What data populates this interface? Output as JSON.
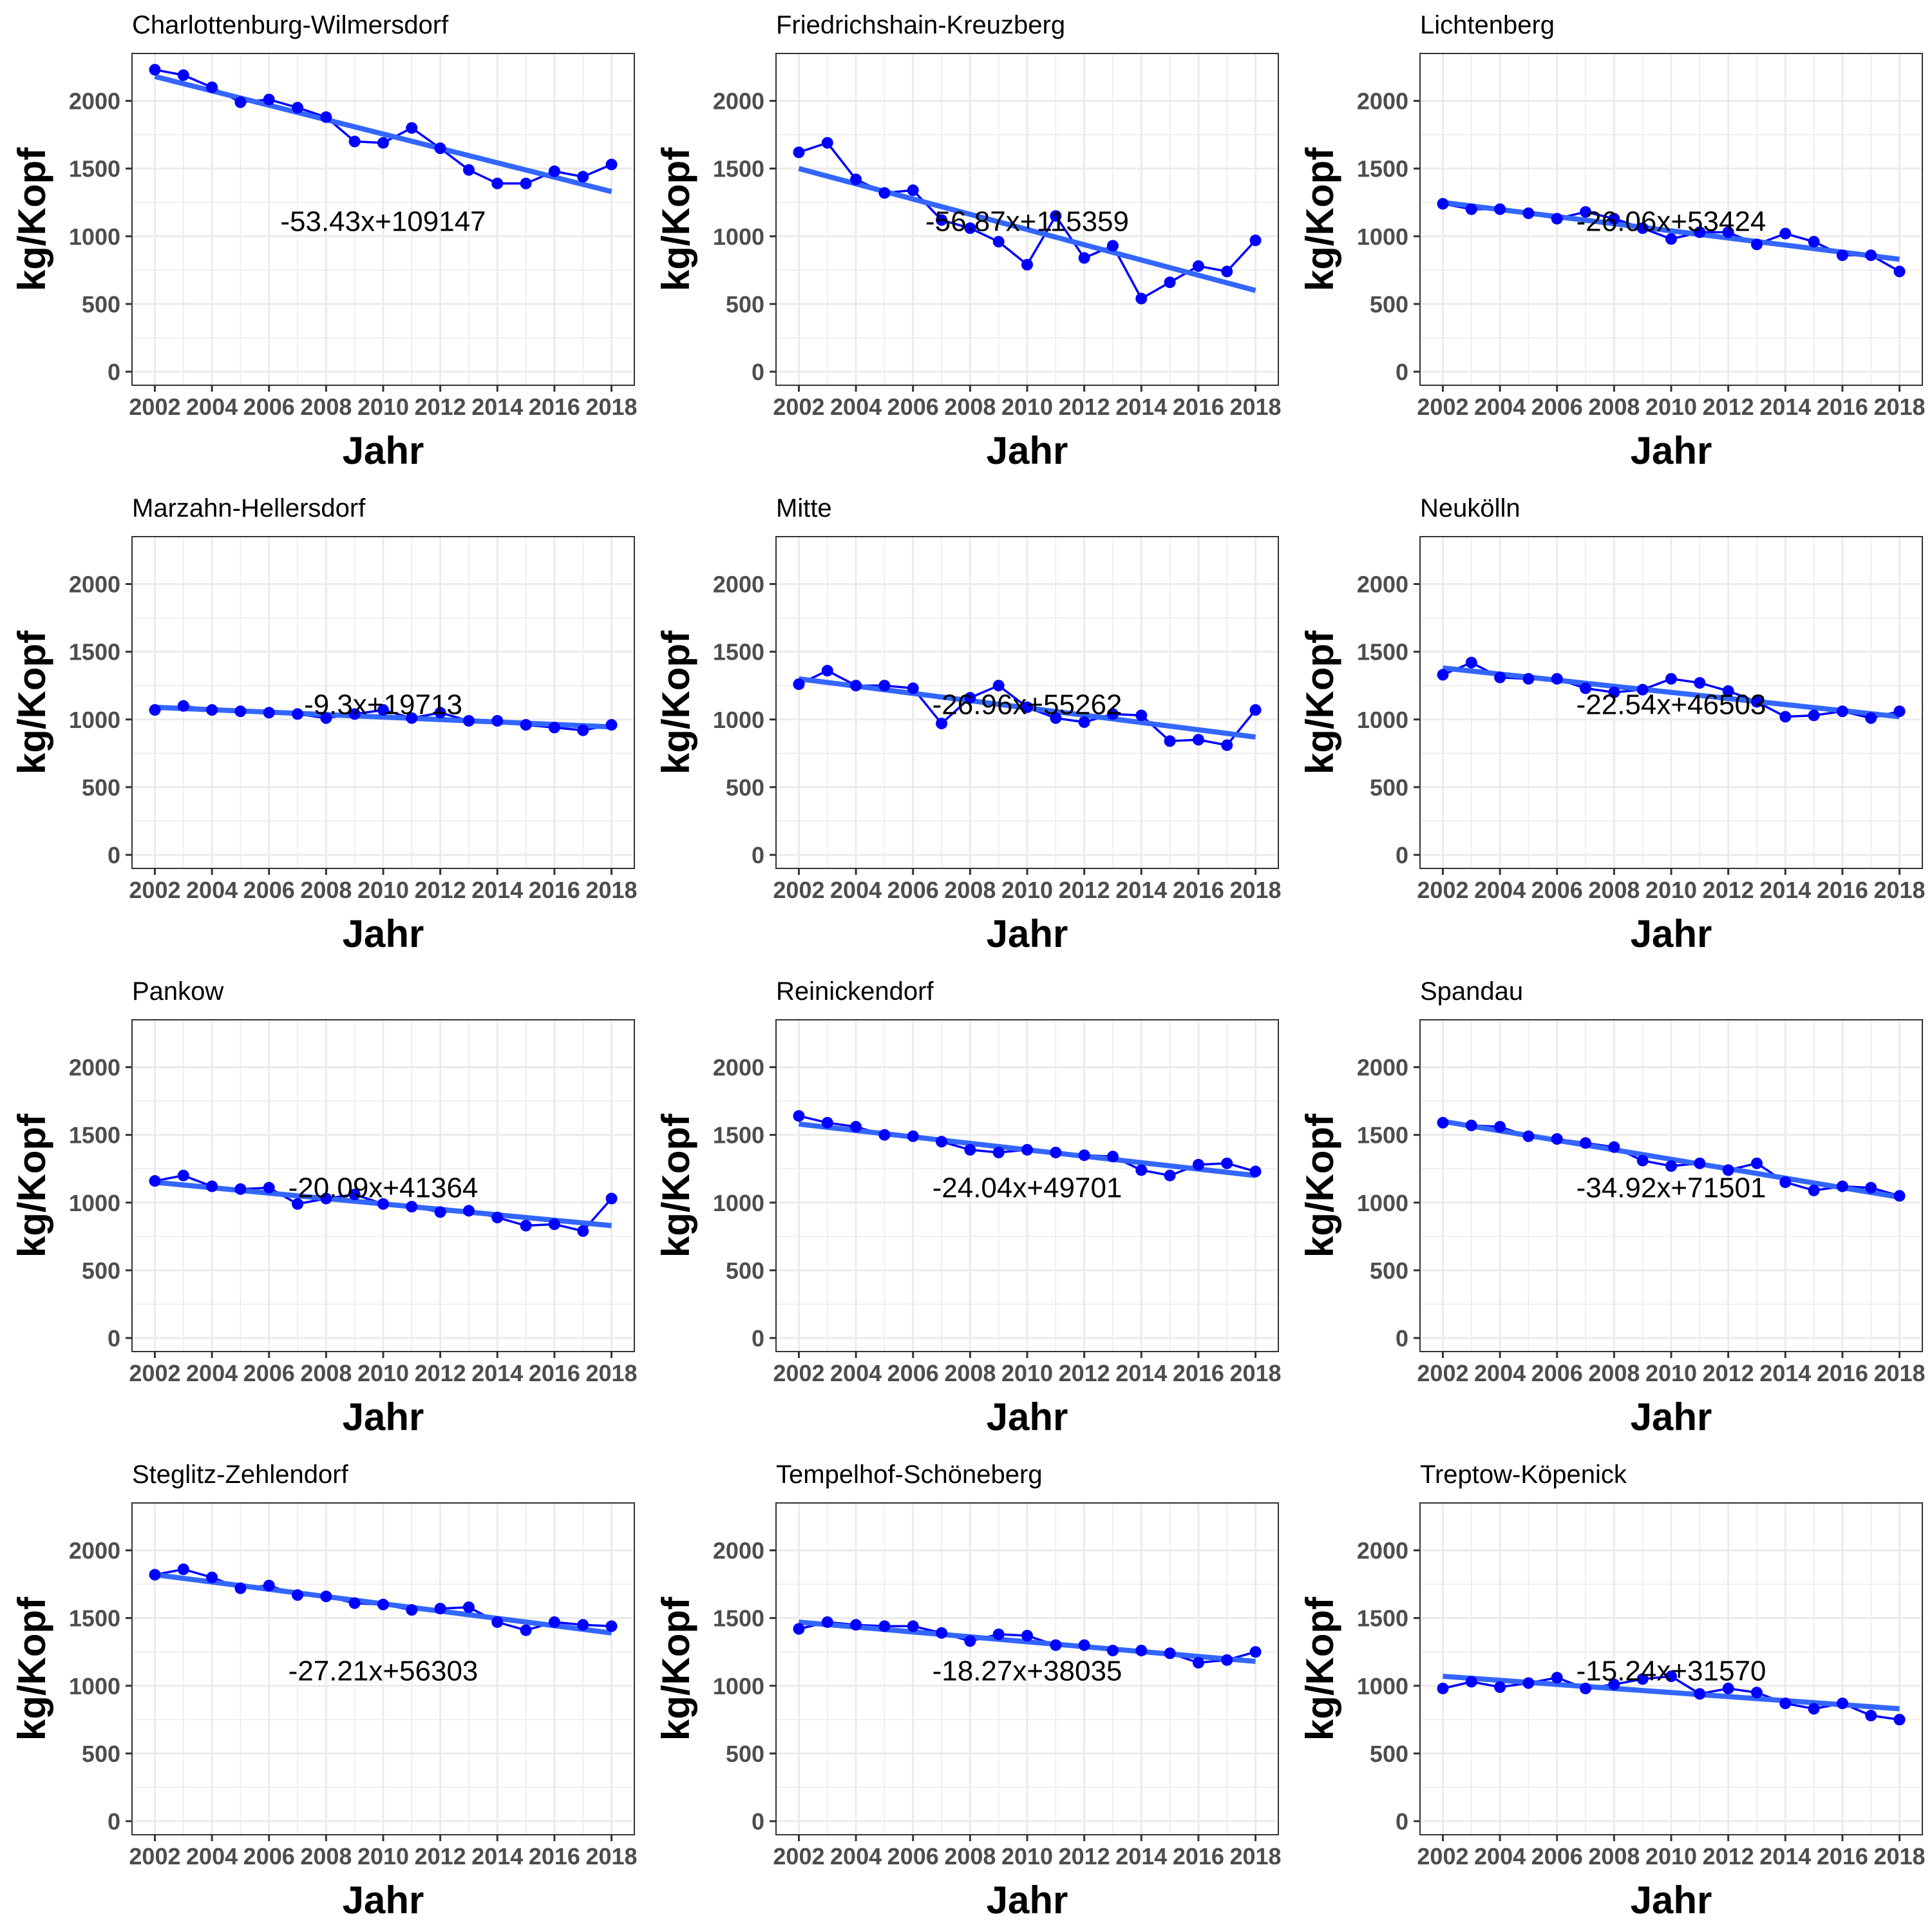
{
  "figure": {
    "xlabel": "Jahr",
    "ylabel": "kg/Kopf",
    "colors": {
      "points": "#0000ff",
      "trend": "#3366ff",
      "grid": "#ebebeb",
      "border": "#333333"
    }
  },
  "chart_data": [
    {
      "type": "line",
      "title": "Charlottenburg-Wilmersdorf",
      "x": [
        2002,
        2003,
        2004,
        2005,
        2006,
        2007,
        2008,
        2009,
        2010,
        2011,
        2012,
        2013,
        2014,
        2015,
        2016,
        2017,
        2018
      ],
      "series": [
        {
          "values": [
            2230,
            2190,
            2100,
            1990,
            2010,
            1950,
            1880,
            1700,
            1690,
            1800,
            1650,
            1490,
            1390,
            1390,
            1480,
            1440,
            1530
          ]
        }
      ],
      "trend": {
        "start": [
          2002,
          2180
        ],
        "end": [
          2018,
          1330
        ]
      },
      "annotation": {
        "text": "-53.43x+109147",
        "x": 2010,
        "y": 1110
      },
      "xlabel": "Jahr",
      "ylabel": "kg/Kopf",
      "xlim": [
        2001.2,
        2018.8
      ],
      "ylim": [
        -100,
        2350
      ],
      "xticks": [
        2002,
        2004,
        2006,
        2008,
        2010,
        2012,
        2014,
        2016,
        2018
      ],
      "yticks": [
        0,
        500,
        1000,
        1500,
        2000
      ],
      "grid": true
    },
    {
      "type": "line",
      "title": "Friedrichshain-Kreuzberg",
      "x": [
        2002,
        2003,
        2004,
        2005,
        2006,
        2007,
        2008,
        2009,
        2010,
        2011,
        2012,
        2013,
        2014,
        2015,
        2016,
        2017,
        2018
      ],
      "series": [
        {
          "values": [
            1620,
            1690,
            1420,
            1320,
            1340,
            1120,
            1060,
            960,
            790,
            1150,
            840,
            930,
            540,
            660,
            780,
            740,
            970
          ]
        }
      ],
      "trend": {
        "start": [
          2002,
          1500
        ],
        "end": [
          2018,
          600
        ]
      },
      "annotation": {
        "text": "-56.87x+115359",
        "x": 2010,
        "y": 1110
      },
      "xlabel": "Jahr",
      "ylabel": "kg/Kopf",
      "xlim": [
        2001.2,
        2018.8
      ],
      "ylim": [
        -100,
        2350
      ],
      "xticks": [
        2002,
        2004,
        2006,
        2008,
        2010,
        2012,
        2014,
        2016,
        2018
      ],
      "yticks": [
        0,
        500,
        1000,
        1500,
        2000
      ],
      "grid": true
    },
    {
      "type": "line",
      "title": "Lichtenberg",
      "x": [
        2002,
        2003,
        2004,
        2005,
        2006,
        2007,
        2008,
        2009,
        2010,
        2011,
        2012,
        2013,
        2014,
        2015,
        2016,
        2017,
        2018
      ],
      "series": [
        {
          "values": [
            1240,
            1200,
            1200,
            1170,
            1130,
            1180,
            1130,
            1060,
            980,
            1030,
            1030,
            940,
            1020,
            960,
            860,
            860,
            740
          ]
        }
      ],
      "trend": {
        "start": [
          2002,
          1250
        ],
        "end": [
          2018,
          830
        ]
      },
      "annotation": {
        "text": "-26.06x+53424",
        "x": 2010,
        "y": 1110
      },
      "xlabel": "Jahr",
      "ylabel": "kg/Kopf",
      "xlim": [
        2001.2,
        2018.8
      ],
      "ylim": [
        -100,
        2350
      ],
      "xticks": [
        2002,
        2004,
        2006,
        2008,
        2010,
        2012,
        2014,
        2016,
        2018
      ],
      "yticks": [
        0,
        500,
        1000,
        1500,
        2000
      ],
      "grid": true
    },
    {
      "type": "line",
      "title": "Marzahn-Hellersdorf",
      "x": [
        2002,
        2003,
        2004,
        2005,
        2006,
        2007,
        2008,
        2009,
        2010,
        2011,
        2012,
        2013,
        2014,
        2015,
        2016,
        2017,
        2018
      ],
      "series": [
        {
          "values": [
            1070,
            1100,
            1070,
            1060,
            1050,
            1040,
            1010,
            1040,
            1070,
            1010,
            1050,
            990,
            990,
            960,
            940,
            920,
            960
          ]
        }
      ],
      "trend": {
        "start": [
          2002,
          1090
        ],
        "end": [
          2018,
          945
        ]
      },
      "annotation": {
        "text": "-9.3x+19713",
        "x": 2010,
        "y": 1110
      },
      "xlabel": "Jahr",
      "ylabel": "kg/Kopf",
      "xlim": [
        2001.2,
        2018.8
      ],
      "ylim": [
        -100,
        2350
      ],
      "xticks": [
        2002,
        2004,
        2006,
        2008,
        2010,
        2012,
        2014,
        2016,
        2018
      ],
      "yticks": [
        0,
        500,
        1000,
        1500,
        2000
      ],
      "grid": true
    },
    {
      "type": "line",
      "title": "Mitte",
      "x": [
        2002,
        2003,
        2004,
        2005,
        2006,
        2007,
        2008,
        2009,
        2010,
        2011,
        2012,
        2013,
        2014,
        2015,
        2016,
        2017,
        2018
      ],
      "series": [
        {
          "values": [
            1260,
            1360,
            1250,
            1250,
            1230,
            970,
            1160,
            1250,
            1090,
            1010,
            980,
            1040,
            1030,
            840,
            850,
            810,
            1070
          ]
        }
      ],
      "trend": {
        "start": [
          2002,
          1300
        ],
        "end": [
          2018,
          870
        ]
      },
      "annotation": {
        "text": "-26.96x+55262",
        "x": 2010,
        "y": 1110
      },
      "xlabel": "Jahr",
      "ylabel": "kg/Kopf",
      "xlim": [
        2001.2,
        2018.8
      ],
      "ylim": [
        -100,
        2350
      ],
      "xticks": [
        2002,
        2004,
        2006,
        2008,
        2010,
        2012,
        2014,
        2016,
        2018
      ],
      "yticks": [
        0,
        500,
        1000,
        1500,
        2000
      ],
      "grid": true
    },
    {
      "type": "line",
      "title": "Neukölln",
      "x": [
        2002,
        2003,
        2004,
        2005,
        2006,
        2007,
        2008,
        2009,
        2010,
        2011,
        2012,
        2013,
        2014,
        2015,
        2016,
        2017,
        2018
      ],
      "series": [
        {
          "values": [
            1330,
            1420,
            1310,
            1300,
            1300,
            1230,
            1200,
            1220,
            1300,
            1270,
            1210,
            1130,
            1020,
            1030,
            1060,
            1010,
            1060
          ]
        }
      ],
      "trend": {
        "start": [
          2002,
          1380
        ],
        "end": [
          2018,
          1020
        ]
      },
      "annotation": {
        "text": "-22.54x+46503",
        "x": 2010,
        "y": 1110
      },
      "xlabel": "Jahr",
      "ylabel": "kg/Kopf",
      "xlim": [
        2001.2,
        2018.8
      ],
      "ylim": [
        -100,
        2350
      ],
      "xticks": [
        2002,
        2004,
        2006,
        2008,
        2010,
        2012,
        2014,
        2016,
        2018
      ],
      "yticks": [
        0,
        500,
        1000,
        1500,
        2000
      ],
      "grid": true
    },
    {
      "type": "line",
      "title": "Pankow",
      "x": [
        2002,
        2003,
        2004,
        2005,
        2006,
        2007,
        2008,
        2009,
        2010,
        2011,
        2012,
        2013,
        2014,
        2015,
        2016,
        2017,
        2018
      ],
      "series": [
        {
          "values": [
            1160,
            1200,
            1120,
            1100,
            1110,
            990,
            1030,
            1060,
            990,
            970,
            930,
            940,
            890,
            830,
            840,
            790,
            1030
          ]
        }
      ],
      "trend": {
        "start": [
          2002,
          1150
        ],
        "end": [
          2018,
          830
        ]
      },
      "annotation": {
        "text": "-20.09x+41364",
        "x": 2010,
        "y": 1110
      },
      "xlabel": "Jahr",
      "ylabel": "kg/Kopf",
      "xlim": [
        2001.2,
        2018.8
      ],
      "ylim": [
        -100,
        2350
      ],
      "xticks": [
        2002,
        2004,
        2006,
        2008,
        2010,
        2012,
        2014,
        2016,
        2018
      ],
      "yticks": [
        0,
        500,
        1000,
        1500,
        2000
      ],
      "grid": true
    },
    {
      "type": "line",
      "title": "Reinickendorf",
      "x": [
        2002,
        2003,
        2004,
        2005,
        2006,
        2007,
        2008,
        2009,
        2010,
        2011,
        2012,
        2013,
        2014,
        2015,
        2016,
        2017,
        2018
      ],
      "series": [
        {
          "values": [
            1640,
            1590,
            1560,
            1500,
            1490,
            1450,
            1390,
            1370,
            1390,
            1370,
            1350,
            1340,
            1240,
            1200,
            1280,
            1290,
            1230
          ]
        }
      ],
      "trend": {
        "start": [
          2002,
          1580
        ],
        "end": [
          2018,
          1200
        ]
      },
      "annotation": {
        "text": "-24.04x+49701",
        "x": 2010,
        "y": 1110
      },
      "xlabel": "Jahr",
      "ylabel": "kg/Kopf",
      "xlim": [
        2001.2,
        2018.8
      ],
      "ylim": [
        -100,
        2350
      ],
      "xticks": [
        2002,
        2004,
        2006,
        2008,
        2010,
        2012,
        2014,
        2016,
        2018
      ],
      "yticks": [
        0,
        500,
        1000,
        1500,
        2000
      ],
      "grid": true
    },
    {
      "type": "line",
      "title": "Spandau",
      "x": [
        2002,
        2003,
        2004,
        2005,
        2006,
        2007,
        2008,
        2009,
        2010,
        2011,
        2012,
        2013,
        2014,
        2015,
        2016,
        2017,
        2018
      ],
      "series": [
        {
          "values": [
            1590,
            1570,
            1560,
            1490,
            1470,
            1440,
            1410,
            1310,
            1270,
            1290,
            1240,
            1290,
            1150,
            1090,
            1120,
            1110,
            1050
          ]
        }
      ],
      "trend": {
        "start": [
          2002,
          1600
        ],
        "end": [
          2018,
          1040
        ]
      },
      "annotation": {
        "text": "-34.92x+71501",
        "x": 2010,
        "y": 1110
      },
      "xlabel": "Jahr",
      "ylabel": "kg/Kopf",
      "xlim": [
        2001.2,
        2018.8
      ],
      "ylim": [
        -100,
        2350
      ],
      "xticks": [
        2002,
        2004,
        2006,
        2008,
        2010,
        2012,
        2014,
        2016,
        2018
      ],
      "yticks": [
        0,
        500,
        1000,
        1500,
        2000
      ],
      "grid": true
    },
    {
      "type": "line",
      "title": "Steglitz-Zehlendorf",
      "x": [
        2002,
        2003,
        2004,
        2005,
        2006,
        2007,
        2008,
        2009,
        2010,
        2011,
        2012,
        2013,
        2014,
        2015,
        2016,
        2017,
        2018
      ],
      "series": [
        {
          "values": [
            1820,
            1860,
            1800,
            1720,
            1740,
            1670,
            1660,
            1610,
            1600,
            1560,
            1570,
            1580,
            1470,
            1410,
            1470,
            1450,
            1440
          ]
        }
      ],
      "trend": {
        "start": [
          2002,
          1820
        ],
        "end": [
          2018,
          1390
        ]
      },
      "annotation": {
        "text": "-27.21x+56303",
        "x": 2010,
        "y": 1110
      },
      "xlabel": "Jahr",
      "ylabel": "kg/Kopf",
      "xlim": [
        2001.2,
        2018.8
      ],
      "ylim": [
        -100,
        2350
      ],
      "xticks": [
        2002,
        2004,
        2006,
        2008,
        2010,
        2012,
        2014,
        2016,
        2018
      ],
      "yticks": [
        0,
        500,
        1000,
        1500,
        2000
      ],
      "grid": true
    },
    {
      "type": "line",
      "title": "Tempelhof-Schöneberg",
      "x": [
        2002,
        2003,
        2004,
        2005,
        2006,
        2007,
        2008,
        2009,
        2010,
        2011,
        2012,
        2013,
        2014,
        2015,
        2016,
        2017,
        2018
      ],
      "series": [
        {
          "values": [
            1420,
            1470,
            1450,
            1440,
            1440,
            1390,
            1330,
            1380,
            1370,
            1300,
            1300,
            1260,
            1260,
            1240,
            1170,
            1190,
            1250
          ]
        }
      ],
      "trend": {
        "start": [
          2002,
          1470
        ],
        "end": [
          2018,
          1180
        ]
      },
      "annotation": {
        "text": "-18.27x+38035",
        "x": 2010,
        "y": 1110
      },
      "xlabel": "Jahr",
      "ylabel": "kg/Kopf",
      "xlim": [
        2001.2,
        2018.8
      ],
      "ylim": [
        -100,
        2350
      ],
      "xticks": [
        2002,
        2004,
        2006,
        2008,
        2010,
        2012,
        2014,
        2016,
        2018
      ],
      "yticks": [
        0,
        500,
        1000,
        1500,
        2000
      ],
      "grid": true
    },
    {
      "type": "line",
      "title": "Treptow-Köpenick",
      "x": [
        2002,
        2003,
        2004,
        2005,
        2006,
        2007,
        2008,
        2009,
        2010,
        2011,
        2012,
        2013,
        2014,
        2015,
        2016,
        2017,
        2018
      ],
      "series": [
        {
          "values": [
            980,
            1030,
            990,
            1020,
            1060,
            980,
            1010,
            1050,
            1070,
            940,
            980,
            950,
            870,
            830,
            870,
            780,
            750
          ]
        }
      ],
      "trend": {
        "start": [
          2002,
          1070
        ],
        "end": [
          2018,
          830
        ]
      },
      "annotation": {
        "text": "-15.24x+31570",
        "x": 2010,
        "y": 1110
      },
      "xlabel": "Jahr",
      "ylabel": "kg/Kopf",
      "xlim": [
        2001.2,
        2018.8
      ],
      "ylim": [
        -100,
        2350
      ],
      "xticks": [
        2002,
        2004,
        2006,
        2008,
        2010,
        2012,
        2014,
        2016,
        2018
      ],
      "yticks": [
        0,
        500,
        1000,
        1500,
        2000
      ],
      "grid": true
    }
  ]
}
